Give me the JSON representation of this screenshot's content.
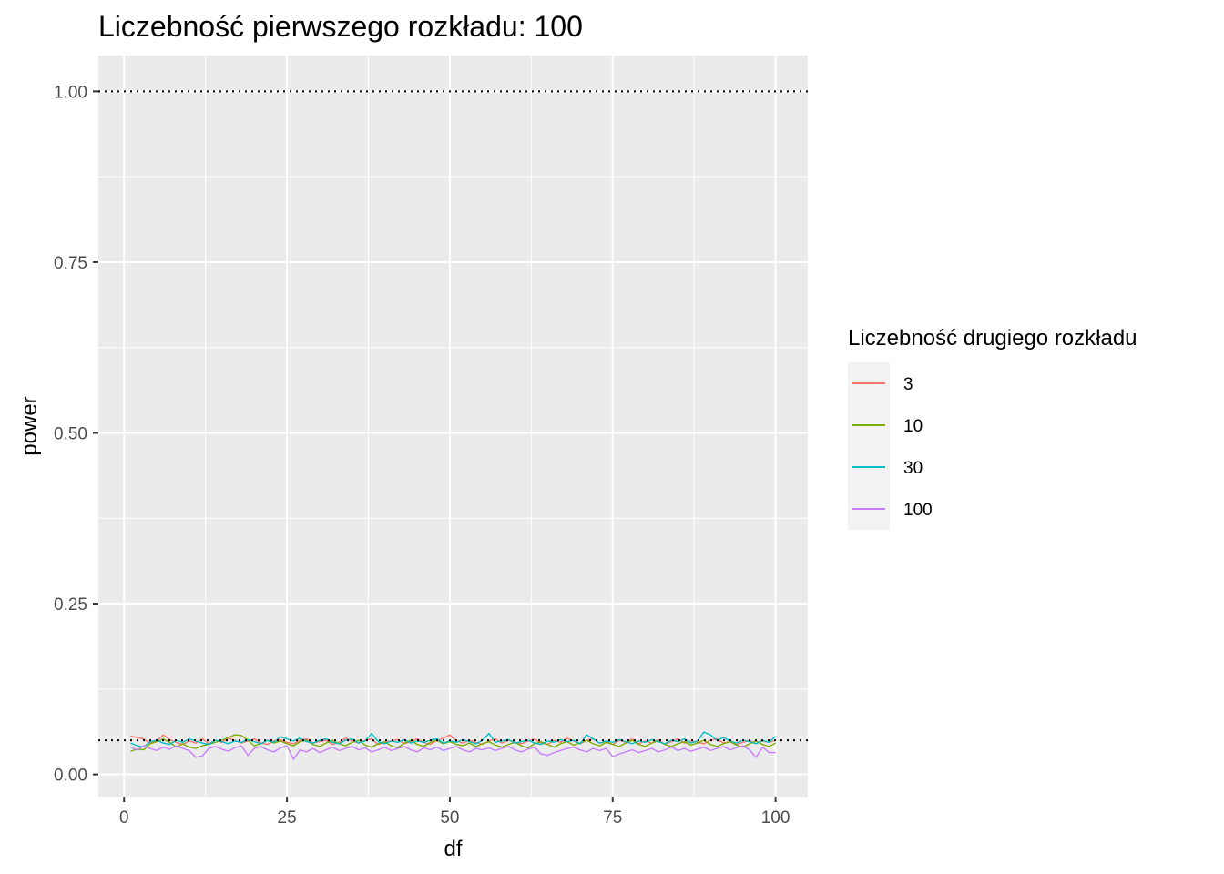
{
  "chart_data": {
    "type": "line",
    "title": "Liczebność pierwszego rozkładu: 100",
    "xlabel": "df",
    "ylabel": "power",
    "xlim": [
      -3.95,
      104.95
    ],
    "ylim": [
      -0.0325,
      1.0525
    ],
    "x_ticks": [
      0,
      25,
      50,
      75,
      100
    ],
    "x_tick_labels": [
      "0",
      "25",
      "50",
      "75",
      "100"
    ],
    "y_ticks": [
      0,
      0.25,
      0.5,
      0.75,
      1
    ],
    "y_tick_labels": [
      "0.00",
      "0.25",
      "0.50",
      "0.75",
      "1.00"
    ],
    "grid": true,
    "reference_lines": [
      {
        "y": 1.0,
        "style": "dotted",
        "color": "#000000"
      },
      {
        "y": 0.05,
        "style": "dotted",
        "color": "#000000"
      }
    ],
    "legend": {
      "title": "Liczebność drugiego rozkładu",
      "position": "right"
    },
    "x_start": 1,
    "x_step": 1,
    "series": [
      {
        "name": "3",
        "color": "#F8766D",
        "values": [
          0.056,
          0.054,
          0.052,
          0.046,
          0.049,
          0.058,
          0.051,
          0.047,
          0.044,
          0.049,
          0.046,
          0.052,
          0.045,
          0.05,
          0.047,
          0.053,
          0.05,
          0.046,
          0.049,
          0.052,
          0.046,
          0.044,
          0.049,
          0.051,
          0.047,
          0.045,
          0.05,
          0.052,
          0.046,
          0.048,
          0.05,
          0.044,
          0.047,
          0.053,
          0.049,
          0.046,
          0.05,
          0.052,
          0.044,
          0.047,
          0.049,
          0.051,
          0.045,
          0.048,
          0.052,
          0.047,
          0.044,
          0.05,
          0.053,
          0.058,
          0.049,
          0.046,
          0.05,
          0.047,
          0.044,
          0.049,
          0.052,
          0.046,
          0.05,
          0.047,
          0.045,
          0.049,
          0.052,
          0.046,
          0.044,
          0.05,
          0.047,
          0.053,
          0.049,
          0.045,
          0.05,
          0.052,
          0.046,
          0.048,
          0.044,
          0.05,
          0.047,
          0.052,
          0.045,
          0.049,
          0.046,
          0.051,
          0.044,
          0.048,
          0.052,
          0.046,
          0.049,
          0.047,
          0.045,
          0.05,
          0.052,
          0.046,
          0.048,
          0.044,
          0.047,
          0.05,
          0.045,
          0.049,
          0.047,
          0.05
        ]
      },
      {
        "name": "10",
        "color": "#7CAE00",
        "values": [
          0.034,
          0.037,
          0.036,
          0.045,
          0.048,
          0.052,
          0.047,
          0.04,
          0.045,
          0.04,
          0.038,
          0.042,
          0.044,
          0.047,
          0.05,
          0.054,
          0.058,
          0.057,
          0.05,
          0.042,
          0.045,
          0.05,
          0.046,
          0.049,
          0.045,
          0.042,
          0.048,
          0.05,
          0.044,
          0.041,
          0.046,
          0.05,
          0.045,
          0.042,
          0.047,
          0.05,
          0.043,
          0.04,
          0.045,
          0.048,
          0.042,
          0.039,
          0.046,
          0.05,
          0.044,
          0.041,
          0.047,
          0.05,
          0.045,
          0.048,
          0.044,
          0.042,
          0.046,
          0.041,
          0.045,
          0.048,
          0.043,
          0.04,
          0.044,
          0.047,
          0.042,
          0.039,
          0.045,
          0.048,
          0.044,
          0.04,
          0.045,
          0.048,
          0.043,
          0.046,
          0.05,
          0.045,
          0.042,
          0.047,
          0.044,
          0.041,
          0.046,
          0.05,
          0.044,
          0.041,
          0.046,
          0.049,
          0.044,
          0.041,
          0.045,
          0.048,
          0.043,
          0.046,
          0.05,
          0.044,
          0.041,
          0.045,
          0.048,
          0.043,
          0.04,
          0.045,
          0.049,
          0.044,
          0.041,
          0.046
        ]
      },
      {
        "name": "30",
        "color": "#00BFC4",
        "values": [
          0.046,
          0.042,
          0.04,
          0.048,
          0.05,
          0.046,
          0.044,
          0.05,
          0.047,
          0.052,
          0.049,
          0.046,
          0.044,
          0.05,
          0.048,
          0.045,
          0.049,
          0.047,
          0.051,
          0.048,
          0.045,
          0.05,
          0.047,
          0.055,
          0.052,
          0.049,
          0.053,
          0.048,
          0.046,
          0.05,
          0.052,
          0.047,
          0.045,
          0.05,
          0.052,
          0.046,
          0.049,
          0.06,
          0.048,
          0.045,
          0.049,
          0.047,
          0.051,
          0.046,
          0.049,
          0.047,
          0.05,
          0.052,
          0.046,
          0.049,
          0.047,
          0.051,
          0.048,
          0.045,
          0.05,
          0.06,
          0.047,
          0.049,
          0.051,
          0.046,
          0.048,
          0.05,
          0.046,
          0.044,
          0.049,
          0.047,
          0.051,
          0.048,
          0.05,
          0.045,
          0.058,
          0.052,
          0.046,
          0.049,
          0.047,
          0.051,
          0.048,
          0.045,
          0.049,
          0.047,
          0.051,
          0.048,
          0.045,
          0.05,
          0.048,
          0.052,
          0.046,
          0.049,
          0.062,
          0.058,
          0.05,
          0.054,
          0.049,
          0.046,
          0.05,
          0.048,
          0.045,
          0.05,
          0.047,
          0.056
        ]
      },
      {
        "name": "100",
        "color": "#C77CFF",
        "values": [
          0.04,
          0.036,
          0.042,
          0.038,
          0.035,
          0.04,
          0.037,
          0.042,
          0.038,
          0.035,
          0.025,
          0.027,
          0.038,
          0.041,
          0.037,
          0.034,
          0.039,
          0.042,
          0.028,
          0.038,
          0.041,
          0.036,
          0.033,
          0.039,
          0.042,
          0.022,
          0.036,
          0.033,
          0.038,
          0.032,
          0.036,
          0.04,
          0.035,
          0.038,
          0.041,
          0.036,
          0.039,
          0.033,
          0.036,
          0.04,
          0.035,
          0.038,
          0.041,
          0.036,
          0.033,
          0.039,
          0.036,
          0.04,
          0.035,
          0.038,
          0.041,
          0.036,
          0.033,
          0.038,
          0.036,
          0.039,
          0.035,
          0.038,
          0.041,
          0.036,
          0.033,
          0.037,
          0.04,
          0.03,
          0.028,
          0.032,
          0.035,
          0.038,
          0.04,
          0.036,
          0.033,
          0.038,
          0.035,
          0.038,
          0.026,
          0.03,
          0.033,
          0.036,
          0.032,
          0.035,
          0.038,
          0.033,
          0.036,
          0.04,
          0.035,
          0.038,
          0.034,
          0.037,
          0.04,
          0.035,
          0.038,
          0.041,
          0.036,
          0.039,
          0.042,
          0.036,
          0.025,
          0.04,
          0.032,
          0.032
        ]
      }
    ]
  }
}
